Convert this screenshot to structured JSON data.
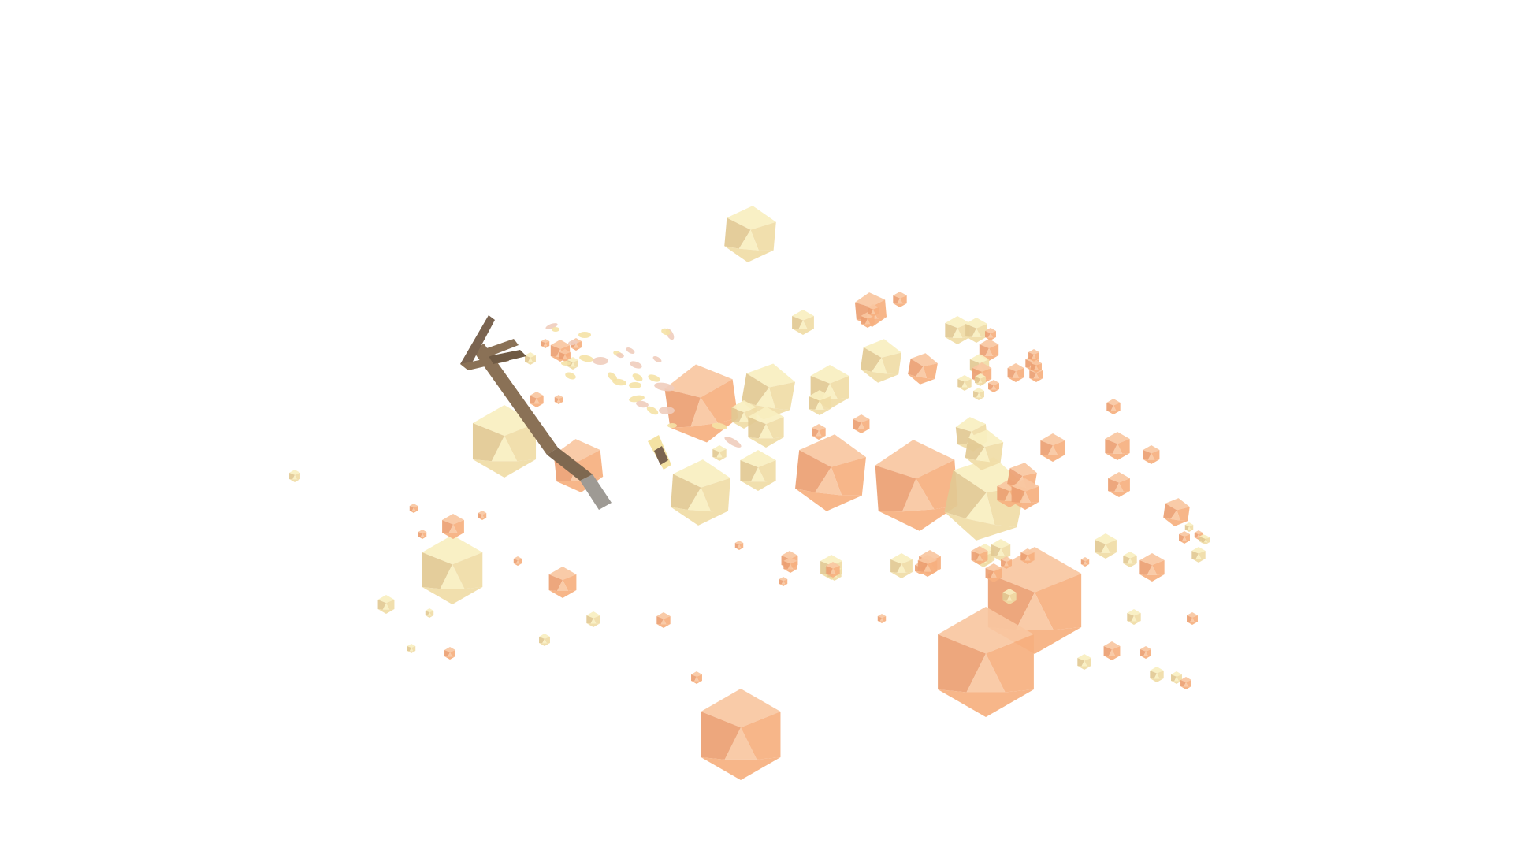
{
  "scene": {
    "background_color": "#ffffff",
    "palette": {
      "orange": "#f6b07f",
      "orange_light": "#f9c7a1",
      "orange_dark": "#ec9f72",
      "cream": "#f0dca6",
      "cream_light": "#f9efc0",
      "cream_dark": "#e2c992",
      "wood": "#8a7156",
      "wood_dark": "#6f5a44",
      "metal": "#9e9a94",
      "oval_pink": "#f0cdbd",
      "oval_yellow": "#f5e2a6"
    },
    "objects": {
      "pickaxe": "pickaxe-icon",
      "rock_fragment": "icosahedron-icon",
      "dust_particle": "oval-particle-icon",
      "small_tool": "hammer-icon"
    }
  }
}
